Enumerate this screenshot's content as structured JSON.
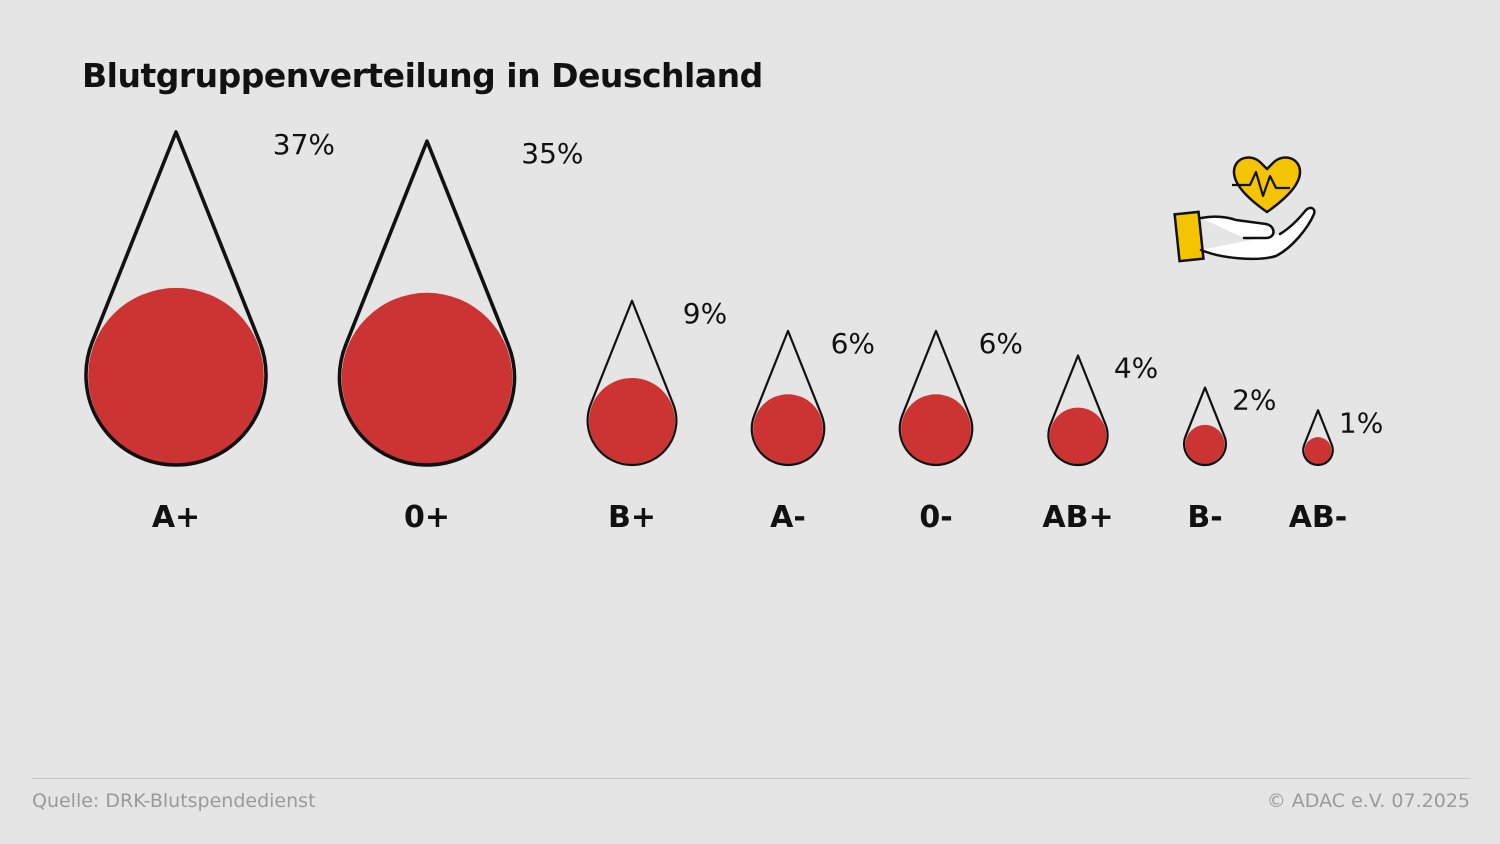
{
  "chart_data": {
    "type": "proportional-symbol",
    "title": "Blutgruppenverteilung in Deuschland",
    "unit": "%",
    "categories": [
      "A+",
      "0+",
      "B+",
      "A-",
      "0-",
      "AB+",
      "B-",
      "AB-"
    ],
    "values": [
      37,
      35,
      9,
      6,
      6,
      4,
      2,
      1
    ],
    "value_labels": [
      "37%",
      "35%",
      "9%",
      "6%",
      "6%",
      "4%",
      "2%",
      "1%"
    ]
  },
  "colors": {
    "background": "#e5e5e5",
    "blood": "#cc3333",
    "outline": "#111111",
    "accent": "#f5c400"
  },
  "icon": {
    "name": "heart-in-hand-icon"
  },
  "footer": {
    "source": "Quelle: DRK-Blutspendedienst",
    "copyright": "© ADAC e.V. 07.2025"
  }
}
